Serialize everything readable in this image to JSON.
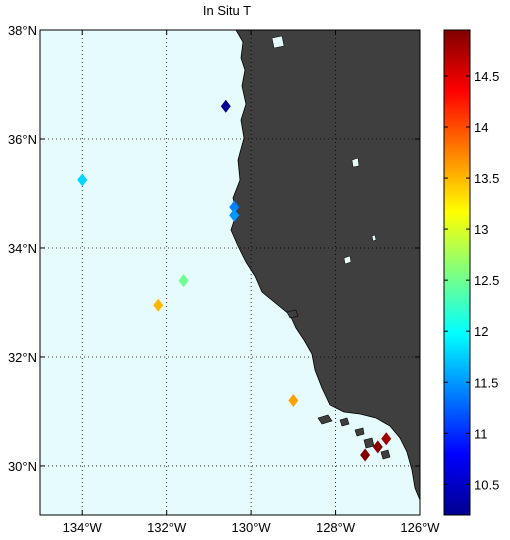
{
  "title": "In Situ T",
  "map": {
    "lon_range": [
      -135,
      -126
    ],
    "lat_range": [
      29.1,
      38
    ],
    "lon_ticks": [
      -134,
      -132,
      -130,
      -128,
      -126
    ],
    "lat_ticks": [
      30,
      32,
      34,
      36,
      38
    ],
    "lon_tick_labels": [
      "134°W",
      "132°W",
      "130°W",
      "128°W",
      "126°W"
    ],
    "lat_tick_labels": [
      "30°N",
      "32°N",
      "34°N",
      "36°N",
      "38°N"
    ],
    "grid": true,
    "ocean_color": "#e6fbfc",
    "land_color": "#3f3f3f"
  },
  "colorbar": {
    "range": [
      10.2,
      14.95
    ],
    "ticks": [
      10.5,
      11,
      11.5,
      12,
      12.5,
      13,
      13.5,
      14,
      14.5
    ],
    "tick_labels": [
      "10.5",
      "11",
      "11.5",
      "12",
      "12.5",
      "13",
      "13.5",
      "14",
      "14.5"
    ],
    "colormap": "jet"
  },
  "chart_data": {
    "type": "scatter",
    "x_label": "",
    "y_label": "",
    "points": [
      {
        "lon": -130.6,
        "lat": 36.6,
        "value": 10.3
      },
      {
        "lon": -134.0,
        "lat": 35.25,
        "value": 11.8
      },
      {
        "lon": -130.4,
        "lat": 34.75,
        "value": 11.4
      },
      {
        "lon": -130.4,
        "lat": 34.6,
        "value": 11.5
      },
      {
        "lon": -131.6,
        "lat": 33.4,
        "value": 12.5
      },
      {
        "lon": -132.2,
        "lat": 32.95,
        "value": 13.5
      },
      {
        "lon": -129.0,
        "lat": 31.2,
        "value": 13.6
      },
      {
        "lon": -126.8,
        "lat": 30.5,
        "value": 14.8
      },
      {
        "lon": -127.0,
        "lat": 30.35,
        "value": 14.9
      },
      {
        "lon": -127.3,
        "lat": 30.2,
        "value": 14.95
      }
    ]
  }
}
